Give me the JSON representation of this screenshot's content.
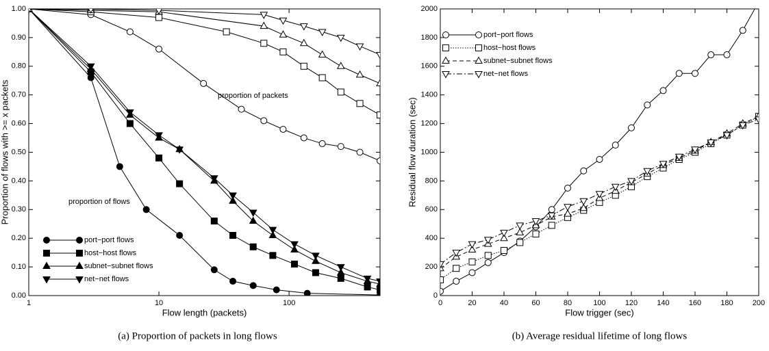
{
  "chart_data": [
    {
      "type": "line",
      "xscale": "log",
      "xlabel": "Flow length (packets)",
      "ylabel": "Proportion of flows with >= x packets",
      "caption": "(a) Proportion of packets in long flows",
      "annotations": [
        "proportion of packets",
        "proportion of flows"
      ],
      "xlim": [
        1,
        500
      ],
      "ylim": [
        0,
        1
      ],
      "xticks": [
        1,
        10,
        100
      ],
      "yticks": [
        {
          "value": 0,
          "label": "0.00"
        },
        {
          "value": 0.1,
          "label": "0.10"
        },
        {
          "value": 0.2,
          "label": "0.20"
        },
        {
          "value": 0.3,
          "label": "0.30"
        },
        {
          "value": 0.4,
          "label": "0.40"
        },
        {
          "value": 0.5,
          "label": "0.50"
        },
        {
          "value": 0.6,
          "label": "0.60"
        },
        {
          "value": 0.7,
          "label": "0.70"
        },
        {
          "value": 0.8,
          "label": "0.80"
        },
        {
          "value": 0.9,
          "label": "0.90"
        },
        {
          "value": 1,
          "label": "1.00"
        }
      ],
      "legend": "lower left",
      "series": [
        {
          "name": "port−port flows",
          "color": "#000000",
          "marker": "circle",
          "filled": true,
          "linestyle": "solid",
          "x": [
            1,
            3,
            5,
            8,
            14.4,
            26.6,
            37,
            53,
            80,
            138,
            500
          ],
          "values": [
            1,
            0.76,
            0.45,
            0.3,
            0.21,
            0.09,
            0.05,
            0.035,
            0.02,
            0.008,
            0.002
          ]
        },
        {
          "name": "host−host flows",
          "color": "#000000",
          "marker": "square",
          "filled": true,
          "linestyle": "solid",
          "x": [
            1,
            3,
            6,
            10,
            14.4,
            26.6,
            37,
            53,
            75,
            110,
            160,
            250,
            400,
            500
          ],
          "values": [
            1,
            0.78,
            0.6,
            0.48,
            0.39,
            0.26,
            0.21,
            0.17,
            0.14,
            0.11,
            0.08,
            0.06,
            0.03,
            0.02
          ]
        },
        {
          "name": "subnet−subnet flows",
          "color": "#000000",
          "marker": "triangle-up",
          "filled": true,
          "linestyle": "solid",
          "x": [
            1,
            3,
            6,
            10,
            14.4,
            26.6,
            37,
            53,
            75,
            110,
            160,
            250,
            400,
            500
          ],
          "values": [
            1,
            0.79,
            0.63,
            0.55,
            0.51,
            0.4,
            0.33,
            0.26,
            0.21,
            0.16,
            0.12,
            0.08,
            0.05,
            0.04
          ]
        },
        {
          "name": "net−net flows",
          "color": "#000000",
          "marker": "triangle-down",
          "filled": true,
          "linestyle": "solid",
          "x": [
            1,
            3,
            6,
            10,
            14.4,
            26.6,
            37,
            53,
            75,
            110,
            160,
            250,
            400,
            500
          ],
          "values": [
            1,
            0.8,
            0.64,
            0.56,
            0.51,
            0.41,
            0.35,
            0.29,
            0.23,
            0.18,
            0.14,
            0.1,
            0.06,
            0.05
          ]
        },
        {
          "color": "#000000",
          "marker": "circle",
          "filled": false,
          "linestyle": "solid",
          "x": [
            1,
            3,
            6,
            10,
            22,
            43,
            64,
            90,
            130,
            180,
            250,
            350,
            500
          ],
          "values": [
            1,
            0.98,
            0.92,
            0.86,
            0.74,
            0.65,
            0.61,
            0.58,
            0.55,
            0.53,
            0.52,
            0.5,
            0.47
          ]
        },
        {
          "color": "#000000",
          "marker": "square",
          "filled": false,
          "linestyle": "solid",
          "x": [
            1,
            3,
            10,
            33,
            64,
            90,
            130,
            180,
            250,
            350,
            500
          ],
          "values": [
            1,
            0.99,
            0.97,
            0.92,
            0.88,
            0.85,
            0.8,
            0.76,
            0.71,
            0.67,
            0.63
          ]
        },
        {
          "color": "#000000",
          "marker": "triangle-up",
          "filled": false,
          "linestyle": "solid",
          "x": [
            1,
            3,
            10,
            64,
            90,
            130,
            180,
            250,
            350,
            500
          ],
          "values": [
            1,
            0.995,
            0.99,
            0.94,
            0.91,
            0.88,
            0.84,
            0.8,
            0.77,
            0.74
          ]
        },
        {
          "color": "#000000",
          "marker": "triangle-down",
          "filled": false,
          "linestyle": "solid",
          "x": [
            1,
            3,
            10,
            64,
            90,
            130,
            180,
            250,
            350,
            500
          ],
          "values": [
            1,
            0.999,
            0.995,
            0.98,
            0.96,
            0.94,
            0.92,
            0.9,
            0.87,
            0.84
          ]
        }
      ]
    },
    {
      "type": "line",
      "xscale": "linear",
      "xlabel": "Flow trigger (sec)",
      "ylabel": "Residual flow duration (sec)",
      "caption": "(b) Average residual lifetime of long flows",
      "xlim": [
        0,
        200
      ],
      "ylim": [
        0,
        2000
      ],
      "xticks": [
        0,
        20,
        40,
        60,
        80,
        100,
        120,
        140,
        160,
        180,
        200
      ],
      "yticks": [
        0,
        200,
        400,
        600,
        800,
        1000,
        1200,
        1400,
        1600,
        1800,
        2000
      ],
      "legend": "upper left",
      "series": [
        {
          "name": "port−port flows",
          "color": "#000000",
          "marker": "circle",
          "filled": false,
          "linestyle": "solid",
          "x": [
            0,
            10,
            20,
            30,
            40,
            50,
            60,
            70,
            80,
            90,
            100,
            110,
            120,
            130,
            140,
            150,
            160,
            170,
            180,
            190,
            200
          ],
          "values": [
            30,
            100,
            160,
            230,
            300,
            380,
            480,
            600,
            750,
            870,
            950,
            1050,
            1170,
            1330,
            1430,
            1550,
            1550,
            1680,
            1680,
            1850,
            2050
          ]
        },
        {
          "name": "host−host flows",
          "color": "#000000",
          "marker": "square",
          "filled": false,
          "linestyle": "dotted",
          "x": [
            0,
            10,
            20,
            30,
            40,
            50,
            60,
            70,
            80,
            90,
            100,
            110,
            120,
            130,
            140,
            150,
            160,
            170,
            180,
            190,
            200
          ],
          "values": [
            110,
            190,
            235,
            280,
            315,
            370,
            430,
            490,
            545,
            595,
            650,
            700,
            760,
            830,
            890,
            950,
            1000,
            1060,
            1120,
            1190,
            1250
          ]
        },
        {
          "name": "subnet−subnet flows",
          "color": "#000000",
          "marker": "triangle-up",
          "filled": false,
          "linestyle": "dashed",
          "x": [
            0,
            10,
            20,
            30,
            40,
            50,
            60,
            70,
            80,
            90,
            100,
            110,
            120,
            130,
            140,
            150,
            160,
            170,
            180,
            190,
            200
          ],
          "values": [
            190,
            270,
            320,
            360,
            400,
            440,
            490,
            550,
            570,
            610,
            680,
            730,
            790,
            850,
            910,
            960,
            1010,
            1070,
            1130,
            1200,
            1250
          ]
        },
        {
          "name": "net−net flows",
          "color": "#000000",
          "marker": "triangle-down",
          "filled": false,
          "linestyle": "dashdot",
          "x": [
            0,
            10,
            20,
            30,
            40,
            50,
            60,
            70,
            80,
            90,
            100,
            110,
            120,
            130,
            140,
            150,
            160,
            170,
            180,
            190,
            200
          ],
          "values": [
            220,
            300,
            360,
            390,
            440,
            490,
            520,
            560,
            620,
            660,
            710,
            760,
            800,
            870,
            920,
            970,
            1020,
            1070,
            1120,
            1190,
            1230
          ]
        }
      ]
    }
  ]
}
